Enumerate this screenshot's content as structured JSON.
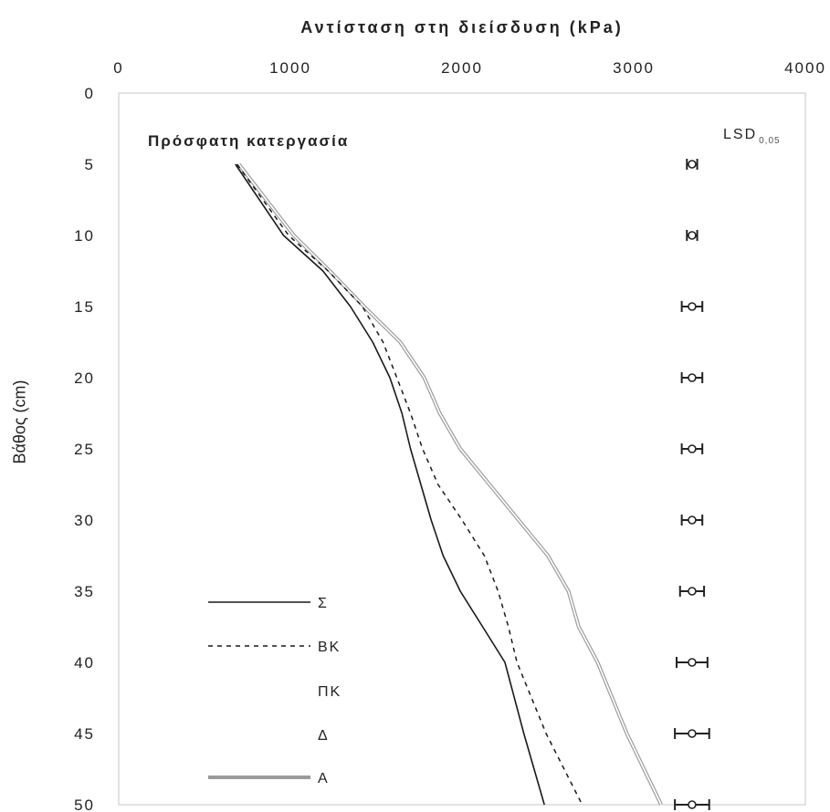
{
  "chart_data": {
    "type": "line",
    "title": "Αντίσταση στη διείσδυση (kPa)",
    "xlabel": "Αντίσταση στη διείσδυση (kPa)",
    "ylabel": "Βάθος (cm)",
    "panel_label": "Πρόσφατη κατεργασία",
    "xlim": [
      0,
      4000
    ],
    "ylim": [
      0,
      50
    ],
    "y_inverted": true,
    "x_axis_position": "top",
    "x_ticks": [
      "0",
      "1000",
      "2000",
      "3000",
      "4000"
    ],
    "y_ticks": [
      "0",
      "5",
      "10",
      "15",
      "20",
      "25",
      "30",
      "35",
      "40",
      "45",
      "50"
    ],
    "x_tick_values": [
      0,
      1000,
      2000,
      3000,
      4000
    ],
    "y_tick_values": [
      0,
      5,
      10,
      15,
      20,
      25,
      30,
      35,
      40,
      45,
      50
    ],
    "legend_position": "bottom-left",
    "series": [
      {
        "name": "Σ",
        "style": "solid-thin",
        "color": "#1a1a1a",
        "x": [
          680,
          960,
          1190,
          1350,
          1480,
          1580,
          1650,
          1700,
          1760,
          1820,
          1890,
          1990,
          2120,
          2250,
          2360,
          2480
        ],
        "y": [
          5,
          10,
          12.5,
          15,
          17.5,
          20,
          22.5,
          25,
          27.5,
          30,
          32.5,
          35,
          37.5,
          40,
          45,
          50
        ]
      },
      {
        "name": "ΒΚ",
        "style": "dashed",
        "color": "#1a1a1a",
        "x": [
          690,
          990,
          1220,
          1420,
          1540,
          1620,
          1700,
          1770,
          1860,
          2000,
          2130,
          2210,
          2270,
          2320,
          2490,
          2700
        ],
        "y": [
          5,
          10,
          12.5,
          15,
          17.5,
          20,
          22.5,
          25,
          27.5,
          30,
          32.5,
          35,
          37.5,
          40,
          45,
          50
        ]
      },
      {
        "name": "ΠΚ",
        "style": "solid",
        "color": "#ffffff",
        "x": [
          700,
          1020,
          1230,
          1430,
          1640,
          1780,
          1870,
          1990,
          2160,
          2330,
          2500,
          2620,
          2680,
          2790,
          2960,
          3160
        ],
        "y": [
          5,
          10,
          12.5,
          15,
          17.5,
          20,
          22.5,
          25,
          27.5,
          30,
          32.5,
          35,
          37.5,
          40,
          45,
          50
        ]
      },
      {
        "name": "Δ",
        "style": "solid",
        "color": "#ffffff",
        "x": [
          700,
          1020,
          1230,
          1430,
          1640,
          1780,
          1870,
          1990,
          2160,
          2330,
          2500,
          2620,
          2680,
          2790,
          2960,
          3160
        ],
        "y": [
          5,
          10,
          12.5,
          15,
          17.5,
          20,
          22.5,
          25,
          27.5,
          30,
          32.5,
          35,
          37.5,
          40,
          45,
          50
        ]
      },
      {
        "name": "Α",
        "style": "thick-grey",
        "color": "#9a9a9a",
        "x": [
          700,
          1020,
          1230,
          1430,
          1640,
          1780,
          1870,
          1990,
          2160,
          2330,
          2500,
          2620,
          2680,
          2790,
          2960,
          3160
        ],
        "y": [
          5,
          10,
          12.5,
          15,
          17.5,
          20,
          22.5,
          25,
          27.5,
          30,
          32.5,
          35,
          37.5,
          40,
          45,
          50
        ]
      }
    ],
    "lsd": {
      "label": "LSD",
      "subscript": "0,05",
      "x_center": 3340,
      "depths": [
        5,
        10,
        15,
        20,
        25,
        30,
        35,
        40,
        45,
        50
      ],
      "half_widths": [
        30,
        30,
        60,
        60,
        60,
        60,
        70,
        90,
        100,
        100
      ]
    }
  }
}
